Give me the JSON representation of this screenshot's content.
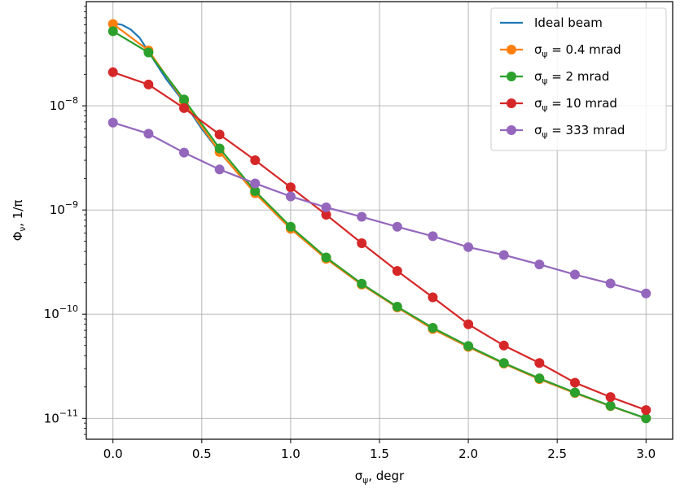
{
  "chart_data": {
    "type": "line",
    "title": "",
    "xlabel_main": "σ",
    "xlabel_sub": "ψ",
    "xlabel_rest": ", degr",
    "ylabel_main": "Φ",
    "ylabel_sub": "ν",
    "ylabel_rest": ", 1/π",
    "xlim": [
      -0.15,
      3.15
    ],
    "ylim": [
      6.3e-12,
      1e-07
    ],
    "y_scale": "log",
    "grid": true,
    "legend_position": "top-right",
    "x_ticks": [
      0.0,
      0.5,
      1.0,
      1.5,
      2.0,
      2.5,
      3.0
    ],
    "x_tick_labels": [
      "0.0",
      "0.5",
      "1.0",
      "1.5",
      "2.0",
      "2.5",
      "3.0"
    ],
    "y_ticks": [
      1e-11,
      1e-10,
      1e-09,
      1e-08
    ],
    "y_tick_labels": [
      {
        "base": "10",
        "exp": "−11"
      },
      {
        "base": "10",
        "exp": "−10"
      },
      {
        "base": "10",
        "exp": "−9"
      },
      {
        "base": "10",
        "exp": "−8"
      }
    ],
    "series": [
      {
        "name": "Ideal beam",
        "label_prefix": "",
        "label_value": "",
        "color": "#1f77b4",
        "marker": "none",
        "x": [
          0.0,
          0.05,
          0.1,
          0.15,
          0.2,
          0.3,
          0.4,
          0.5,
          0.6,
          0.8,
          1.0,
          1.2,
          1.4,
          1.6,
          1.8,
          2.0,
          2.2,
          2.4,
          2.6,
          2.8,
          3.0
        ],
        "y": [
          6.2e-08,
          6e-08,
          5.4e-08,
          4.5e-08,
          3.3e-08,
          1.8e-08,
          1.08e-08,
          6e-09,
          3.6e-09,
          1.45e-09,
          6.6e-10,
          3.4e-10,
          1.92e-10,
          1.16e-10,
          7.2e-11,
          4.85e-11,
          3.35e-11,
          2.38e-11,
          1.75e-11,
          1.31e-11,
          1e-11
        ]
      },
      {
        "name": "σψ = 0.4 mrad",
        "label_prefix": "σ",
        "label_sub": "ψ",
        "label_value": " =  0.4 mrad",
        "color": "#ff7f0e",
        "marker": "circle",
        "x": [
          0.0,
          0.2,
          0.4,
          0.6,
          0.8,
          1.0,
          1.2,
          1.4,
          1.6,
          1.8,
          2.0,
          2.2,
          2.4,
          2.6,
          2.8,
          3.0
        ],
        "y": [
          6.1e-08,
          3.4e-08,
          1.1e-08,
          3.6e-09,
          1.45e-09,
          6.6e-10,
          3.4e-10,
          1.92e-10,
          1.16e-10,
          7.2e-11,
          4.85e-11,
          3.35e-11,
          2.38e-11,
          1.75e-11,
          1.31e-11,
          1e-11
        ]
      },
      {
        "name": "σψ = 2 mrad",
        "label_prefix": "σ",
        "label_sub": "ψ",
        "label_value": " =  2 mrad",
        "color": "#2ca02c",
        "marker": "circle",
        "x": [
          0.0,
          0.2,
          0.4,
          0.6,
          0.8,
          1.0,
          1.2,
          1.4,
          1.6,
          1.8,
          2.0,
          2.2,
          2.4,
          2.6,
          2.8,
          3.0
        ],
        "y": [
          5.2e-08,
          3.25e-08,
          1.15e-08,
          3.9e-09,
          1.52e-09,
          6.9e-10,
          3.5e-10,
          1.96e-10,
          1.18e-10,
          7.4e-11,
          4.95e-11,
          3.4e-11,
          2.42e-11,
          1.77e-11,
          1.32e-11,
          1e-11
        ]
      },
      {
        "name": "σψ = 10 mrad",
        "label_prefix": "σ",
        "label_sub": "ψ",
        "label_value": " =  10 mrad",
        "color": "#d62728",
        "marker": "circle",
        "x": [
          0.0,
          0.2,
          0.4,
          0.6,
          0.8,
          1.0,
          1.2,
          1.4,
          1.6,
          1.8,
          2.0,
          2.2,
          2.4,
          2.6,
          2.8,
          3.0
        ],
        "y": [
          2.1e-08,
          1.6e-08,
          9.5e-09,
          5.3e-09,
          3e-09,
          1.65e-09,
          9e-10,
          4.8e-10,
          2.6e-10,
          1.45e-10,
          8e-11,
          5e-11,
          3.4e-11,
          2.2e-11,
          1.6e-11,
          1.2e-11
        ]
      },
      {
        "name": "σψ = 333 mrad",
        "label_prefix": "σ",
        "label_sub": "ψ",
        "label_value": " =  333 mrad",
        "color": "#9467bd",
        "marker": "circle",
        "x": [
          0.0,
          0.2,
          0.4,
          0.6,
          0.8,
          1.0,
          1.2,
          1.4,
          1.6,
          1.8,
          2.0,
          2.2,
          2.4,
          2.6,
          2.8,
          3.0
        ],
        "y": [
          6.9e-09,
          5.4e-09,
          3.55e-09,
          2.45e-09,
          1.8e-09,
          1.35e-09,
          1.06e-09,
          8.6e-10,
          6.9e-10,
          5.6e-10,
          4.4e-10,
          3.7e-10,
          3e-10,
          2.4e-10,
          1.97e-10,
          1.58e-10
        ]
      }
    ]
  }
}
